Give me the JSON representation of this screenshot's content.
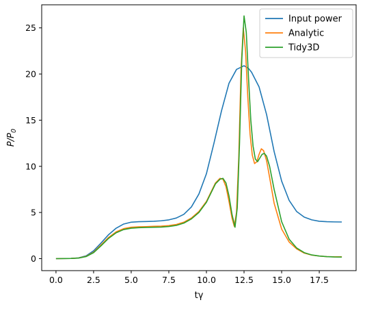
{
  "chart_data": {
    "type": "line",
    "title": "",
    "xlabel": "tγ",
    "ylabel": "P/P",
    "ylabel_subscript": "0",
    "xlim": [
      -0.95,
      19.95
    ],
    "ylim": [
      -1.3,
      27.5
    ],
    "xticks": [
      0.0,
      2.5,
      5.0,
      7.5,
      10.0,
      12.5,
      15.0,
      17.5
    ],
    "xtick_labels": [
      "0.0",
      "2.5",
      "5.0",
      "7.5",
      "10.0",
      "12.5",
      "15.0",
      "17.5"
    ],
    "yticks": [
      0,
      5,
      10,
      15,
      20,
      25
    ],
    "ytick_labels": [
      "0",
      "5",
      "10",
      "15",
      "20",
      "25"
    ],
    "grid": false,
    "legend_position": "top-right",
    "series": [
      {
        "name": "Input power",
        "color": "#1f77b4",
        "x": [
          0.0,
          1.0,
          1.5,
          2.0,
          2.5,
          3.0,
          3.5,
          4.0,
          4.5,
          5.0,
          5.5,
          6.0,
          6.5,
          7.0,
          7.5,
          8.0,
          8.5,
          9.0,
          9.5,
          10.0,
          10.5,
          11.0,
          11.5,
          12.0,
          12.5,
          12.8,
          13.0,
          13.5,
          14.0,
          14.5,
          15.0,
          15.5,
          16.0,
          16.5,
          17.0,
          17.5,
          18.0,
          18.5,
          19.0
        ],
        "y": [
          0.0,
          0.02,
          0.08,
          0.3,
          0.85,
          1.7,
          2.6,
          3.3,
          3.75,
          3.95,
          4.0,
          4.02,
          4.05,
          4.1,
          4.2,
          4.4,
          4.8,
          5.6,
          7.0,
          9.2,
          12.5,
          16.0,
          19.0,
          20.5,
          20.9,
          20.6,
          20.2,
          18.6,
          15.6,
          11.6,
          8.4,
          6.3,
          5.1,
          4.5,
          4.2,
          4.05,
          4.0,
          3.98,
          3.97
        ]
      },
      {
        "name": "Analytic",
        "color": "#ff7f0e",
        "x": [
          0.0,
          1.0,
          1.5,
          2.0,
          2.5,
          3.0,
          3.5,
          4.0,
          4.5,
          5.0,
          5.5,
          6.0,
          6.5,
          7.0,
          7.5,
          8.0,
          8.5,
          9.0,
          9.5,
          10.0,
          10.3,
          10.6,
          10.9,
          11.1,
          11.3,
          11.5,
          11.7,
          11.85,
          12.0,
          12.15,
          12.3,
          12.45,
          12.6,
          12.75,
          12.9,
          13.05,
          13.2,
          13.35,
          13.5,
          13.65,
          13.8,
          14.0,
          14.2,
          14.5,
          15.0,
          15.5,
          16.0,
          16.5,
          17.0,
          17.5,
          18.0,
          18.5,
          19.0
        ],
        "y": [
          0.0,
          0.02,
          0.07,
          0.25,
          0.7,
          1.5,
          2.3,
          2.9,
          3.25,
          3.4,
          3.45,
          3.47,
          3.5,
          3.52,
          3.58,
          3.7,
          3.95,
          4.4,
          5.1,
          6.2,
          7.2,
          8.2,
          8.7,
          8.6,
          7.8,
          6.2,
          4.4,
          3.5,
          5.0,
          11.0,
          20.5,
          25.0,
          22.5,
          17.5,
          13.5,
          11.2,
          10.3,
          10.5,
          11.3,
          11.9,
          11.7,
          10.6,
          8.8,
          6.0,
          3.2,
          1.8,
          1.05,
          0.6,
          0.38,
          0.28,
          0.22,
          0.2,
          0.2
        ]
      },
      {
        "name": "Tidy3D",
        "color": "#2ca02c",
        "x": [
          0.0,
          1.0,
          1.5,
          2.0,
          2.5,
          3.0,
          3.5,
          4.0,
          4.5,
          5.0,
          5.5,
          6.0,
          6.5,
          7.0,
          7.5,
          8.0,
          8.5,
          9.0,
          9.5,
          10.0,
          10.3,
          10.6,
          10.9,
          11.1,
          11.3,
          11.5,
          11.7,
          11.9,
          12.05,
          12.2,
          12.35,
          12.5,
          12.65,
          12.8,
          12.95,
          13.1,
          13.25,
          13.4,
          13.55,
          13.7,
          13.85,
          14.0,
          14.2,
          14.5,
          15.0,
          15.5,
          16.0,
          16.5,
          17.0,
          17.5,
          18.0,
          18.5,
          19.0
        ],
        "y": [
          0.0,
          0.02,
          0.06,
          0.22,
          0.65,
          1.4,
          2.2,
          2.8,
          3.15,
          3.3,
          3.35,
          3.38,
          3.4,
          3.42,
          3.48,
          3.6,
          3.85,
          4.3,
          5.0,
          6.1,
          7.1,
          8.1,
          8.6,
          8.7,
          8.2,
          6.8,
          4.8,
          3.4,
          5.5,
          12.5,
          21.5,
          26.3,
          24.5,
          19.5,
          15.0,
          12.2,
          10.8,
          10.5,
          10.9,
          11.3,
          11.4,
          11.1,
          10.0,
          7.5,
          4.0,
          2.1,
          1.15,
          0.65,
          0.4,
          0.28,
          0.22,
          0.18,
          0.17
        ]
      }
    ]
  }
}
